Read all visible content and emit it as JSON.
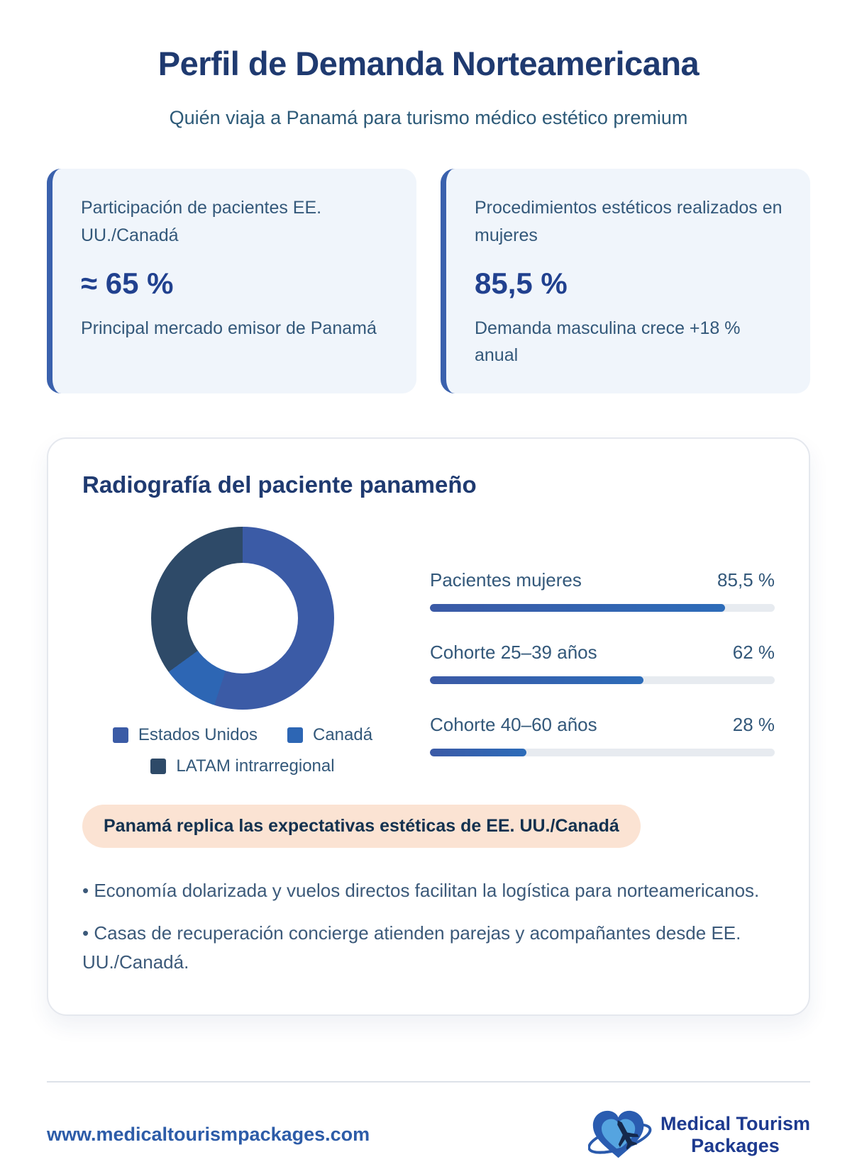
{
  "theme": {
    "title_color": "#1f3a70",
    "body_text_color": "#33587a",
    "accent_blue": "#3a61ad",
    "value_navy": "#21418f",
    "card_bg": "#f0f5fb",
    "pill_bg": "#fbe3d3",
    "pill_text": "#13314f",
    "link_blue": "#2d5ca8"
  },
  "header": {
    "title": "Perfil de Demanda Norteamericana",
    "subtitle": "Quién viaja a Panamá para turismo médico estético premium"
  },
  "stat_cards": [
    {
      "label": "Participación de pacientes EE. UU./Canadá",
      "value": "≈ 65 %",
      "note": "Principal mercado emisor de Panamá"
    },
    {
      "label": "Procedimientos estéticos realizados en mujeres",
      "value": "85,5 %",
      "note": "Demanda masculina crece +18 % anual"
    }
  ],
  "panel": {
    "heading": "Radiografía del paciente panameño",
    "highlight": "Panamá replica las expectativas estéticas de EE. UU./Canadá",
    "bullets": [
      "• Economía dolarizada y vuelos directos facilitan la logística para norteamericanos.",
      "• Casas de recuperación concierge atienden parejas y acompañantes desde EE. UU./Canadá."
    ]
  },
  "chart_data": [
    {
      "type": "pie",
      "subtype": "donut",
      "labels": [
        "Estados Unidos",
        "Canadá",
        "LATAM intrarregional"
      ],
      "values": [
        55,
        10,
        35
      ],
      "unit": "%",
      "colors": [
        "#3b5ba6",
        "#2d66b4",
        "#2e4a68"
      ],
      "start_angle_deg": 0,
      "direction": "clockwise",
      "legend_position": "bottom"
    },
    {
      "type": "bar",
      "orientation": "horizontal",
      "categories": [
        "Pacientes mujeres",
        "Cohorte 25–39 años",
        "Cohorte 40–60 años"
      ],
      "values": [
        85.5,
        62,
        28
      ],
      "value_labels": [
        "85,5 %",
        "62 %",
        "28 %"
      ],
      "xlim": [
        0,
        100
      ],
      "track_color": "#e7ebf0",
      "bar_gradient": [
        "#3b5aa6",
        "#2d6cb9"
      ]
    }
  ],
  "footer": {
    "url": "www.medicaltourismpackages.com",
    "brand_line1": "Medical Tourism",
    "brand_line2": "Packages"
  }
}
